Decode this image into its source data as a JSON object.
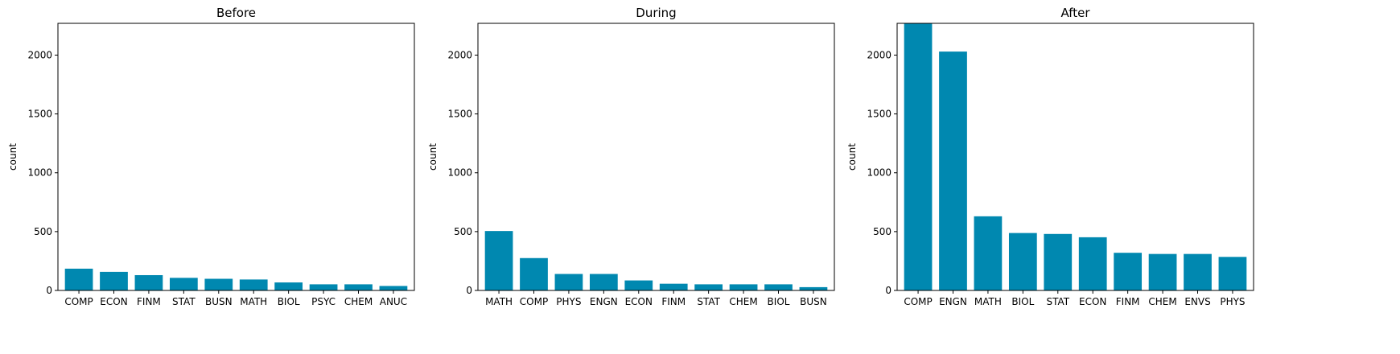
{
  "figure": {
    "bar_color": "#0088b0",
    "axes_color": "#000000",
    "background": "#ffffff"
  },
  "chart_data": [
    {
      "type": "bar",
      "title": "Before",
      "xlabel": "",
      "ylabel": "count",
      "ylim": [
        0,
        2270
      ],
      "yticks": [
        0,
        500,
        1000,
        1500,
        2000
      ],
      "grid": false,
      "categories": [
        "COMP",
        "ECON",
        "FINM",
        "STAT",
        "BUSN",
        "MATH",
        "BIOL",
        "PSYC",
        "CHEM",
        "ANUC"
      ],
      "values": [
        185,
        158,
        130,
        107,
        99,
        93,
        68,
        52,
        52,
        38
      ]
    },
    {
      "type": "bar",
      "title": "During",
      "xlabel": "",
      "ylabel": "count",
      "ylim": [
        0,
        2270
      ],
      "yticks": [
        0,
        500,
        1000,
        1500,
        2000
      ],
      "grid": false,
      "categories": [
        "MATH",
        "COMP",
        "PHYS",
        "ENGN",
        "ECON",
        "FINM",
        "STAT",
        "CHEM",
        "BIOL",
        "BUSN"
      ],
      "values": [
        505,
        275,
        140,
        140,
        85,
        57,
        52,
        52,
        52,
        28
      ]
    },
    {
      "type": "bar",
      "title": "After",
      "xlabel": "",
      "ylabel": "count",
      "ylim": [
        0,
        2270
      ],
      "yticks": [
        0,
        500,
        1000,
        1500,
        2000
      ],
      "grid": false,
      "categories": [
        "COMP",
        "ENGN",
        "MATH",
        "BIOL",
        "STAT",
        "ECON",
        "FINM",
        "CHEM",
        "ENVS",
        "PHYS"
      ],
      "values": [
        2270,
        2030,
        630,
        488,
        480,
        452,
        320,
        310,
        310,
        285
      ]
    }
  ]
}
